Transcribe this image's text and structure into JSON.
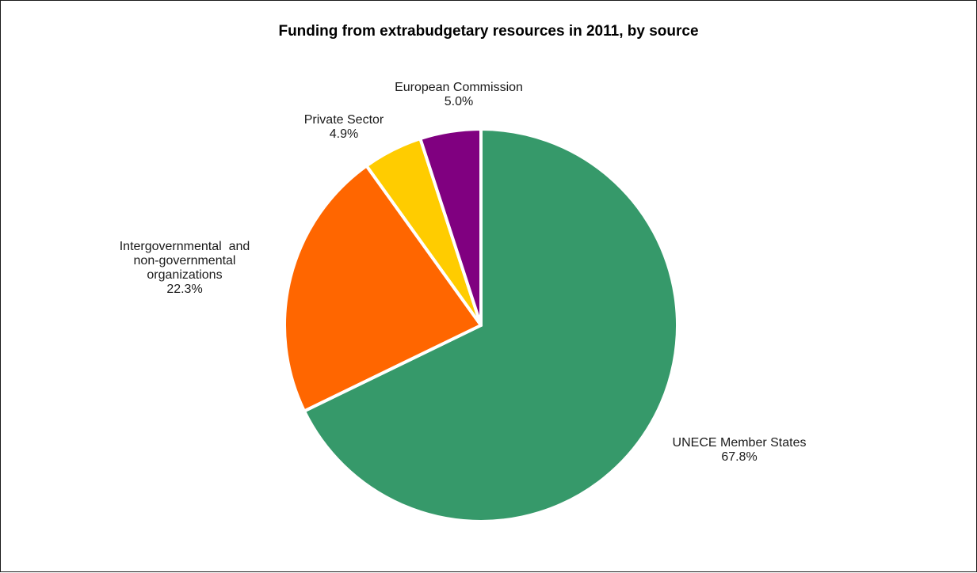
{
  "chart_data": {
    "type": "pie",
    "title": "Funding from extrabudgetary resources in 2011, by source",
    "slices": [
      {
        "label": "UNECE Member States",
        "value": 67.8,
        "display": "67.8%",
        "color": "#36996a"
      },
      {
        "label": "Intergovernmental and non-governmental organizations",
        "label_lines": [
          "Intergovernmental  and",
          "non-governmental",
          "organizations"
        ],
        "value": 22.3,
        "display": "22.3%",
        "color": "#ff6600"
      },
      {
        "label": "Private Sector",
        "value": 4.9,
        "display": "4.9%",
        "color": "#ffcc00"
      },
      {
        "label": "European Commission",
        "value": 5.0,
        "display": "5.0%",
        "color": "#800080"
      }
    ]
  }
}
